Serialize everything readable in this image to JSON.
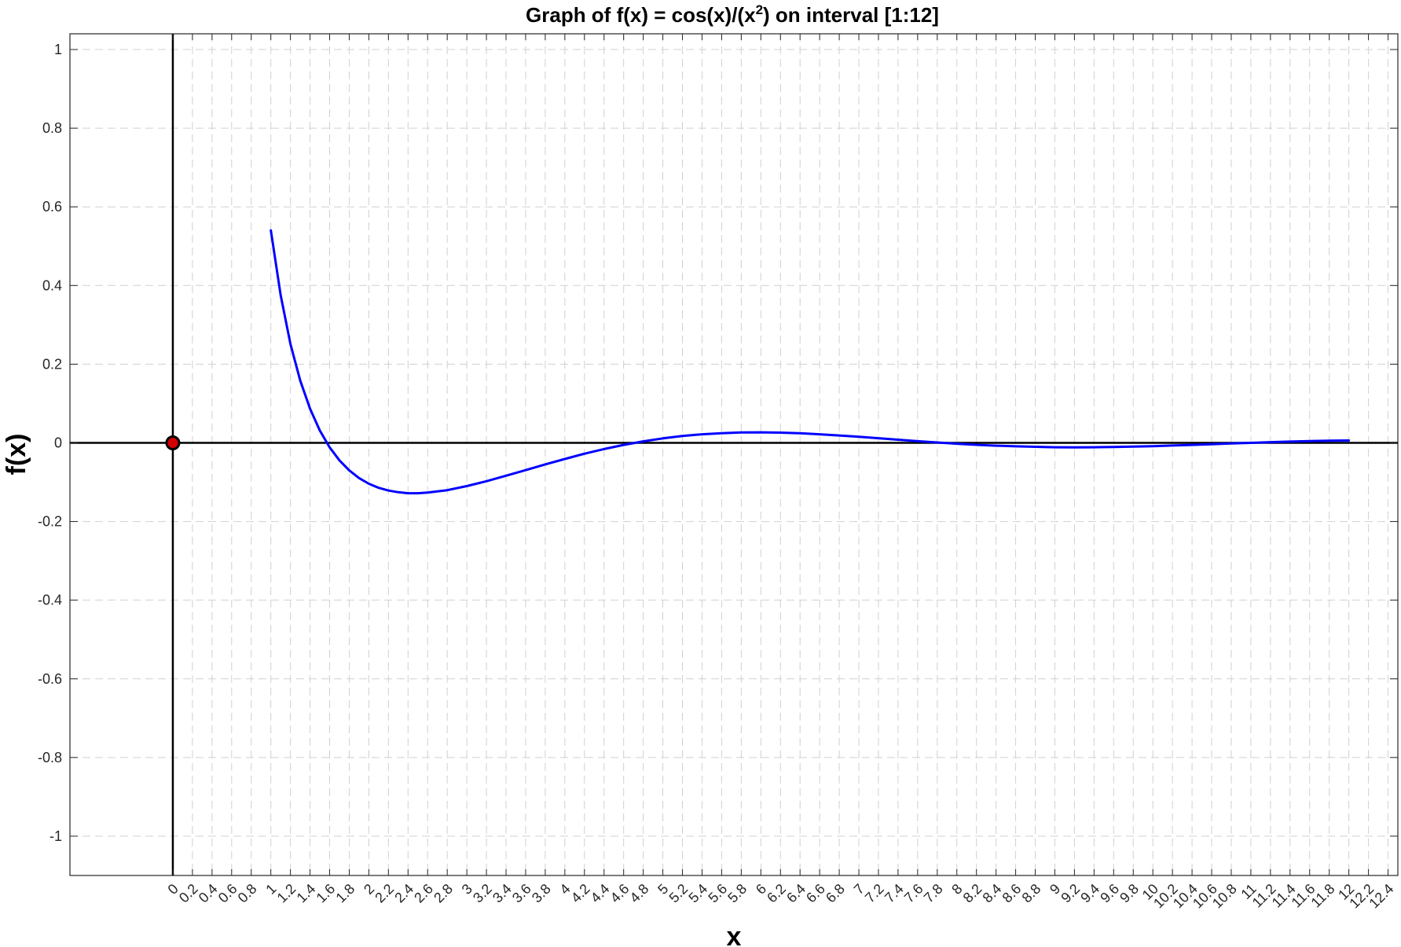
{
  "chart_data": {
    "type": "line",
    "title_prefix": "Graph  of  f(x)  =  cos(x)/(x",
    "title_sup": "2",
    "title_suffix": ")  on  interval  [1:12]",
    "xlabel": "x",
    "ylabel": "f(x)",
    "xlim": [
      -1.05,
      12.5
    ],
    "ylim": [
      -1.1,
      1.04
    ],
    "grid": true,
    "grid_style": "dashed",
    "x_ticks": [
      "0",
      "0.2",
      "0.4",
      "0.6",
      "0.8",
      "1",
      "1.2",
      "1.4",
      "1.6",
      "1.8",
      "2",
      "2.2",
      "2.4",
      "2.6",
      "2.8",
      "3",
      "3.2",
      "3.4",
      "3.6",
      "3.8",
      "4",
      "4.2",
      "4.4",
      "4.6",
      "4.8",
      "5",
      "5.2",
      "5.4",
      "5.6",
      "5.8",
      "6",
      "6.2",
      "6.4",
      "6.6",
      "6.8",
      "7",
      "7.2",
      "7.4",
      "7.6",
      "7.8",
      "8",
      "8.2",
      "8.4",
      "8.6",
      "8.8",
      "9",
      "9.2",
      "9.4",
      "9.6",
      "9.8",
      "10",
      "10.2",
      "10.4",
      "10.6",
      "10.8",
      "11",
      "11.2",
      "11.4",
      "11.6",
      "11.8",
      "12",
      "12.2",
      "12.4"
    ],
    "y_ticks": [
      "-1",
      "-0.8",
      "-0.6",
      "-0.4",
      "-0.2",
      "0",
      "0.2",
      "0.4",
      "0.6",
      "0.8",
      "1"
    ],
    "series": [
      {
        "color": "#0000ff",
        "x": [
          1.0,
          1.1,
          1.2,
          1.3,
          1.4,
          1.5,
          1.6,
          1.7,
          1.8,
          1.9,
          2.0,
          2.1,
          2.2,
          2.3,
          2.4,
          2.5,
          2.6,
          2.8,
          3.0,
          3.2,
          3.4,
          3.6,
          3.8,
          4.0,
          4.2,
          4.4,
          4.6,
          4.8,
          5.0,
          5.2,
          5.4,
          5.6,
          5.8,
          6.0,
          6.2,
          6.4,
          6.6,
          6.8,
          7.0,
          7.2,
          7.4,
          7.6,
          7.8,
          8.0,
          8.2,
          8.4,
          8.6,
          8.8,
          9.0,
          9.2,
          9.4,
          9.6,
          9.8,
          10.0,
          10.2,
          10.4,
          10.6,
          10.8,
          11.0,
          11.2,
          11.4,
          11.6,
          11.8,
          12.0
        ],
        "y": [
          0.5403,
          0.3752,
          0.2516,
          0.1582,
          0.0866,
          0.0314,
          -0.0114,
          -0.0446,
          -0.0702,
          -0.0896,
          -0.104,
          -0.1144,
          -0.1214,
          -0.1255,
          -0.1282,
          -0.1282,
          -0.1266,
          -0.1204,
          -0.11,
          -0.0975,
          -0.0836,
          -0.0694,
          -0.0548,
          -0.0409,
          -0.0277,
          -0.0158,
          -0.0053,
          0.0037,
          0.0113,
          0.0174,
          0.0218,
          0.0246,
          0.0264,
          0.0267,
          0.026,
          0.0243,
          0.0218,
          0.0187,
          0.0154,
          0.0117,
          0.008,
          0.0042,
          0.001,
          -0.0023,
          -0.005,
          -0.0073,
          -0.0089,
          -0.01,
          -0.0112,
          -0.0115,
          -0.0113,
          -0.0107,
          -0.0097,
          -0.0084,
          -0.0069,
          -0.0052,
          -0.0034,
          -0.0017,
          4e-05,
          0.0017,
          0.0032,
          0.0044,
          0.0054,
          0.0059
        ]
      }
    ],
    "markers": [
      {
        "x": 0,
        "y": 0,
        "face_color": "#d40000",
        "edge_color": "#000000"
      }
    ],
    "reference_lines": [
      {
        "axis": "x",
        "value": 0,
        "color": "#000000"
      },
      {
        "axis": "y",
        "value": 0,
        "color": "#000000"
      }
    ]
  }
}
